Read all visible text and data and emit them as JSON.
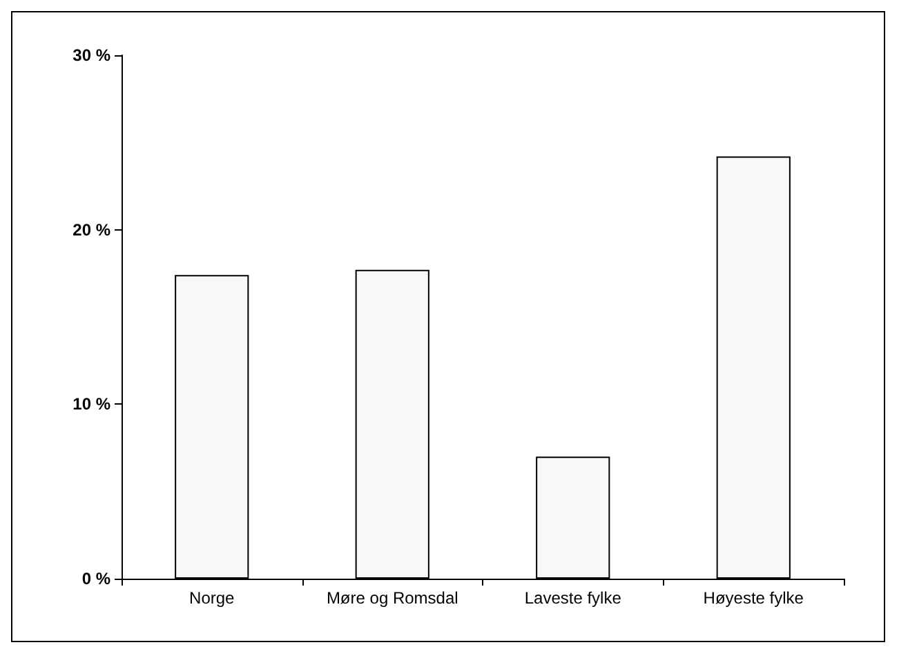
{
  "chart_data": {
    "type": "bar",
    "categories": [
      "Norge",
      "Møre og Romsdal",
      "Laveste fylke",
      "Høyeste fylke"
    ],
    "values": [
      17.4,
      17.7,
      7.0,
      24.2
    ],
    "color": "#f8f8f8",
    "ylim": [
      0,
      30
    ],
    "yticks": [
      {
        "value": 0,
        "label": "0 %"
      },
      {
        "value": 10,
        "label": "10 %"
      },
      {
        "value": 20,
        "label": "20 %"
      },
      {
        "value": 30,
        "label": "30 %"
      }
    ],
    "grid": false
  }
}
